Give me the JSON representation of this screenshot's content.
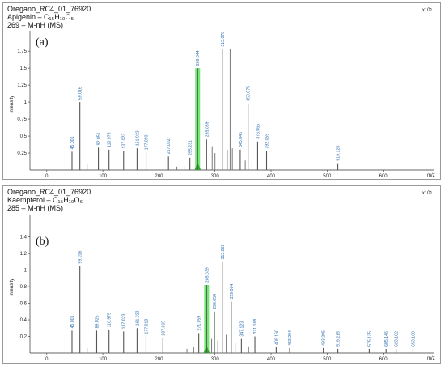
{
  "chart_data": [
    {
      "type": "bar",
      "panel_label": "(a)",
      "header": [
        "Oregano_RC4_01_76920",
        "Apigenin – C₁₅H₁₀O₅",
        "269 – M-nH (MS)"
      ],
      "exponent_label": "x10⁵",
      "ylabel": "Intensity",
      "xlabel": "m/z",
      "xlim": [
        -30,
        690
      ],
      "ylim": [
        0,
        2.05
      ],
      "x_ticks": [
        0,
        100,
        200,
        300,
        400,
        500,
        600
      ],
      "y_ticks": [
        0.25,
        0.5,
        0.75,
        1,
        1.25,
        1.5,
        1.75
      ],
      "highlight_color": "#44dd44",
      "peaks": [
        {
          "x": 45.001,
          "y": 0.27,
          "label": "45.001"
        },
        {
          "x": 59.016,
          "y": 1.0,
          "label": "59.016"
        },
        {
          "x": 92.051,
          "y": 0.33,
          "label": "92.051"
        },
        {
          "x": 110.975,
          "y": 0.3,
          "label": "110.975"
        },
        {
          "x": 137.023,
          "y": 0.28,
          "label": "137.023"
        },
        {
          "x": 161.023,
          "y": 0.32,
          "label": "161.023"
        },
        {
          "x": 177.093,
          "y": 0.26,
          "label": "177.093"
        },
        {
          "x": 217.002,
          "y": 0.2,
          "label": "217.002"
        },
        {
          "x": 255.231,
          "y": 0.18,
          "label": "255.231"
        },
        {
          "x": 269.044,
          "y": 1.5,
          "label": "269.044",
          "highlight": true
        },
        {
          "x": 285.039,
          "y": 0.45,
          "label": "285.039"
        },
        {
          "x": 313.07,
          "y": 1.78,
          "label": "313.070"
        },
        {
          "x": 345.046,
          "y": 0.3,
          "label": "345.046"
        },
        {
          "x": 359.075,
          "y": 0.98,
          "label": "359.075"
        },
        {
          "x": 376.065,
          "y": 0.42,
          "label": "376.065"
        },
        {
          "x": 392.059,
          "y": 0.28,
          "label": "392.059"
        },
        {
          "x": 519.125,
          "y": 0.1,
          "label": "519.125"
        }
      ],
      "unlabeled_peaks": [
        {
          "x": 295,
          "y": 0.35
        },
        {
          "x": 300,
          "y": 0.25
        },
        {
          "x": 322,
          "y": 0.3
        },
        {
          "x": 327,
          "y": 1.78
        },
        {
          "x": 331,
          "y": 0.32
        },
        {
          "x": 354,
          "y": 0.14
        },
        {
          "x": 366,
          "y": 0.12
        },
        {
          "x": 72,
          "y": 0.08
        },
        {
          "x": 232,
          "y": 0.05
        },
        {
          "x": 245,
          "y": 0.06
        }
      ]
    },
    {
      "type": "bar",
      "panel_label": "(b)",
      "header": [
        "Oregano_RC4_01_76920",
        "Kaempferol – C₁₅H₁₀O₆",
        "285 – M-nH (MS)"
      ],
      "exponent_label": "x10⁵",
      "ylabel": "Intensity",
      "xlabel": "m/z",
      "xlim": [
        -30,
        690
      ],
      "ylim": [
        0,
        1.66
      ],
      "x_ticks": [
        0,
        100,
        200,
        300,
        400,
        500,
        600
      ],
      "y_ticks": [
        0.2,
        0.4,
        0.6,
        0.8,
        1,
        1.2,
        1.4
      ],
      "highlight_color": "#44dd44",
      "peaks": [
        {
          "x": 45.001,
          "y": 0.27,
          "label": "45.001"
        },
        {
          "x": 59.016,
          "y": 1.05,
          "label": "59.016"
        },
        {
          "x": 89.025,
          "y": 0.27,
          "label": "89.025"
        },
        {
          "x": 110.975,
          "y": 0.28,
          "label": "110.975"
        },
        {
          "x": 137.023,
          "y": 0.26,
          "label": "137.023"
        },
        {
          "x": 161.023,
          "y": 0.3,
          "label": "161.023"
        },
        {
          "x": 177.018,
          "y": 0.2,
          "label": "177.018"
        },
        {
          "x": 207.065,
          "y": 0.18,
          "label": "207.065"
        },
        {
          "x": 271.059,
          "y": 0.24,
          "label": "271.059"
        },
        {
          "x": 285.039,
          "y": 0.82,
          "label": "285.039",
          "highlight": true
        },
        {
          "x": 299.054,
          "y": 0.5,
          "label": "299.054"
        },
        {
          "x": 313.069,
          "y": 1.1,
          "label": "313.069"
        },
        {
          "x": 329.064,
          "y": 0.62,
          "label": "329.064"
        },
        {
          "x": 347.123,
          "y": 0.17,
          "label": "347.123"
        },
        {
          "x": 371.168,
          "y": 0.2,
          "label": "371.168"
        },
        {
          "x": 409.16,
          "y": 0.07,
          "label": "409.160"
        },
        {
          "x": 433.204,
          "y": 0.06,
          "label": "433.204"
        },
        {
          "x": 493.205,
          "y": 0.06,
          "label": "493.205"
        },
        {
          "x": 519.215,
          "y": 0.05,
          "label": "519.215"
        },
        {
          "x": 575.135,
          "y": 0.05,
          "label": "575.135"
        },
        {
          "x": 605.146,
          "y": 0.05,
          "label": "605.146"
        },
        {
          "x": 623.102,
          "y": 0.05,
          "label": "623.102"
        },
        {
          "x": 653.16,
          "y": 0.05,
          "label": "653.160"
        }
      ],
      "unlabeled_peaks": [
        {
          "x": 291,
          "y": 0.2
        },
        {
          "x": 294,
          "y": 0.17
        },
        {
          "x": 305,
          "y": 0.15
        },
        {
          "x": 320,
          "y": 0.22
        },
        {
          "x": 336,
          "y": 0.12
        },
        {
          "x": 360,
          "y": 0.08
        },
        {
          "x": 72,
          "y": 0.06
        },
        {
          "x": 250,
          "y": 0.05
        },
        {
          "x": 262,
          "y": 0.07
        }
      ]
    }
  ]
}
